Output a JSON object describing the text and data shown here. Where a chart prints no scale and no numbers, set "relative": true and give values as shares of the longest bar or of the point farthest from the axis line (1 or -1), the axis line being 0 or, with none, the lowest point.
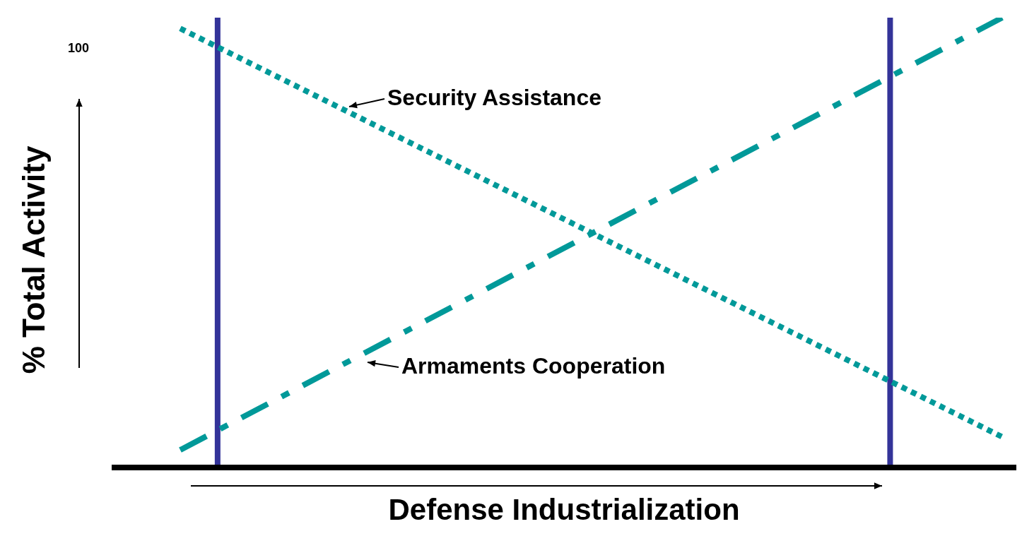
{
  "chart_data": {
    "type": "line",
    "relative": true,
    "xlabel": "Defense Industrialization",
    "ylabel": "% Total Activity",
    "annotations": [
      "100"
    ],
    "categories": [
      null,
      null,
      null,
      null,
      null,
      null,
      null,
      null,
      null,
      null,
      null,
      null,
      null,
      null,
      null,
      null,
      null,
      null,
      null,
      null,
      null,
      null,
      null
    ],
    "series": [
      {
        "name": "Security Assistance",
        "color": "#009999",
        "line_style": "dotted",
        "values": [
          0.976,
          null,
          null,
          null,
          null,
          null,
          null,
          null,
          null,
          null,
          null,
          null,
          null,
          null,
          null,
          null,
          null,
          null,
          null,
          null,
          null,
          null,
          0.068
        ]
      },
      {
        "name": "Armaments Cooperation",
        "color": "#009999",
        "line_style": "dashed",
        "values": [
          0.039,
          null,
          null,
          null,
          null,
          null,
          null,
          null,
          null,
          null,
          null,
          null,
          null,
          null,
          null,
          null,
          null,
          null,
          null,
          null,
          null,
          null,
          1
        ]
      }
    ],
    "grid": false,
    "legend": false
  }
}
